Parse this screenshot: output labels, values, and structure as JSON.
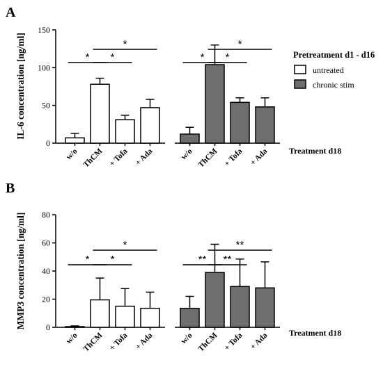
{
  "panels": [
    {
      "letter": "A",
      "ylabel": "IL-6 concentration [ng/ml]",
      "treatment_label": "Treatment d18",
      "ylim": [
        0,
        150
      ],
      "yticks": [
        0,
        50,
        100,
        150
      ],
      "categories": [
        "w/o",
        "ThCM",
        "+ Tofa",
        "+ Ada"
      ],
      "groups": [
        {
          "name": "untreated",
          "color": "#ffffff",
          "values": [
            7,
            78,
            31,
            47
          ],
          "errors": [
            6,
            8,
            6,
            11
          ]
        },
        {
          "name": "chronic stim",
          "color": "#6e6e6e",
          "values": [
            12,
            104,
            54,
            48
          ],
          "errors": [
            9,
            26,
            6,
            12
          ]
        }
      ],
      "brackets": [
        {
          "group": 0,
          "from": 0,
          "to": 1,
          "label": "*"
        },
        {
          "group": 0,
          "from": 1,
          "to": 2,
          "label": "*"
        },
        {
          "group": 0,
          "from": 1,
          "to": 3,
          "label": "*"
        },
        {
          "group": 1,
          "from": 0,
          "to": 1,
          "label": "*"
        },
        {
          "group": 1,
          "from": 1,
          "to": 2,
          "label": "*"
        },
        {
          "group": 1,
          "from": 1,
          "to": 3,
          "label": "*"
        }
      ]
    },
    {
      "letter": "B",
      "ylabel": "MMP3 concentration [ng/ml]",
      "treatment_label": "Treatment d18",
      "ylim": [
        0,
        80
      ],
      "yticks": [
        0,
        20,
        40,
        60,
        80
      ],
      "categories": [
        "w/o",
        "ThCM",
        "+ Tofa",
        "+ Ada"
      ],
      "groups": [
        {
          "name": "untreated",
          "color": "#ffffff",
          "values": [
            0.5,
            19.5,
            15,
            13.5
          ],
          "errors": [
            0.5,
            15.5,
            12.5,
            11.5
          ]
        },
        {
          "name": "chronic stim",
          "color": "#6e6e6e",
          "values": [
            13.5,
            39,
            29,
            28
          ],
          "errors": [
            8.5,
            20,
            19.5,
            18.5
          ]
        }
      ],
      "brackets": [
        {
          "group": 0,
          "from": 0,
          "to": 1,
          "label": "*"
        },
        {
          "group": 0,
          "from": 1,
          "to": 2,
          "label": "*"
        },
        {
          "group": 0,
          "from": 1,
          "to": 3,
          "label": "*"
        },
        {
          "group": 1,
          "from": 0,
          "to": 1,
          "label": "**"
        },
        {
          "group": 1,
          "from": 1,
          "to": 2,
          "label": "**"
        },
        {
          "group": 1,
          "from": 1,
          "to": 3,
          "label": "**"
        }
      ]
    }
  ],
  "legend": {
    "title": "Pretreatment d1 - d16",
    "items": [
      {
        "label": "untreated",
        "color": "#ffffff"
      },
      {
        "label": "chronic stim",
        "color": "#6e6e6e"
      }
    ]
  },
  "chart_data": [
    {
      "type": "bar",
      "title": "",
      "ylabel": "IL-6 concentration [ng/ml]",
      "xlabel": "Treatment d18",
      "ylim": [
        0,
        150
      ],
      "categories": [
        "w/o",
        "ThCM",
        "+ Tofa",
        "+ Ada"
      ],
      "series": [
        {
          "name": "untreated",
          "values": [
            7,
            78,
            31,
            47
          ],
          "errors": [
            6,
            8,
            6,
            11
          ]
        },
        {
          "name": "chronic stim",
          "values": [
            12,
            104,
            54,
            48
          ],
          "errors": [
            9,
            26,
            6,
            12
          ]
        }
      ],
      "legend": "right",
      "grid": false
    },
    {
      "type": "bar",
      "title": "",
      "ylabel": "MMP3 concentration [ng/ml]",
      "xlabel": "Treatment d18",
      "ylim": [
        0,
        80
      ],
      "categories": [
        "w/o",
        "ThCM",
        "+ Tofa",
        "+ Ada"
      ],
      "series": [
        {
          "name": "untreated",
          "values": [
            0.5,
            19.5,
            15,
            13.5
          ],
          "errors": [
            0.5,
            15.5,
            12.5,
            11.5
          ]
        },
        {
          "name": "chronic stim",
          "values": [
            13.5,
            39,
            29,
            28
          ],
          "errors": [
            8.5,
            20,
            19.5,
            18.5
          ]
        }
      ],
      "legend": "none",
      "grid": false
    }
  ]
}
